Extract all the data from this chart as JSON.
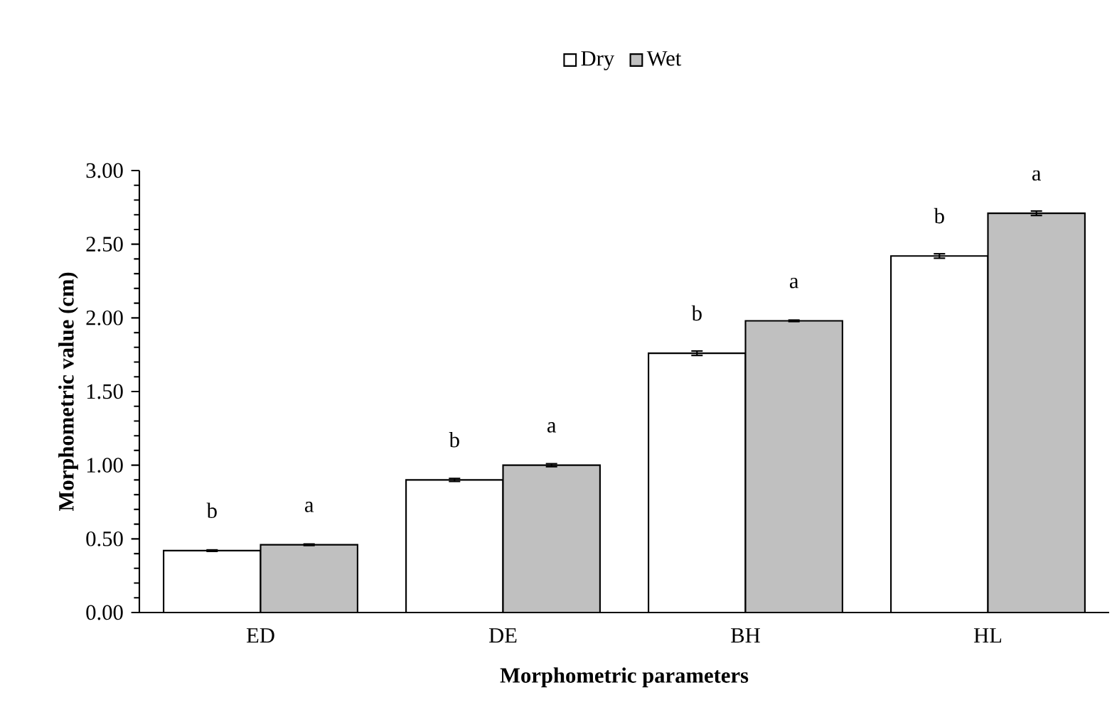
{
  "chart_data": {
    "type": "bar",
    "xlabel": "Morphometric parameters",
    "ylabel": "Morphometric value (cm)",
    "categories": [
      "ED",
      "DE",
      "BH",
      "HL"
    ],
    "series": [
      {
        "name": "Dry",
        "color": "#ffffff",
        "values": [
          0.42,
          0.9,
          1.76,
          2.42
        ],
        "errors": [
          0.005,
          0.01,
          0.015,
          0.015
        ],
        "value_labels": [
          "b",
          "b",
          "b",
          "b"
        ]
      },
      {
        "name": "Wet",
        "color": "#c0c0c0",
        "values": [
          0.46,
          1.0,
          1.98,
          2.71
        ],
        "errors": [
          0.005,
          0.01,
          0.005,
          0.015
        ],
        "value_labels": [
          "a",
          "a",
          "a",
          "a"
        ]
      }
    ],
    "ylim": [
      0,
      3
    ],
    "yticks": [
      {
        "value": 0,
        "label": "0.00"
      },
      {
        "value": 0.5,
        "label": "0.50"
      },
      {
        "value": 1,
        "label": "1.00"
      },
      {
        "value": 1.5,
        "label": "1.50"
      },
      {
        "value": 2,
        "label": "2.00"
      },
      {
        "value": 2.5,
        "label": "2.50"
      },
      {
        "value": 3,
        "label": "3.00"
      }
    ],
    "grid": false,
    "legend": "top"
  }
}
